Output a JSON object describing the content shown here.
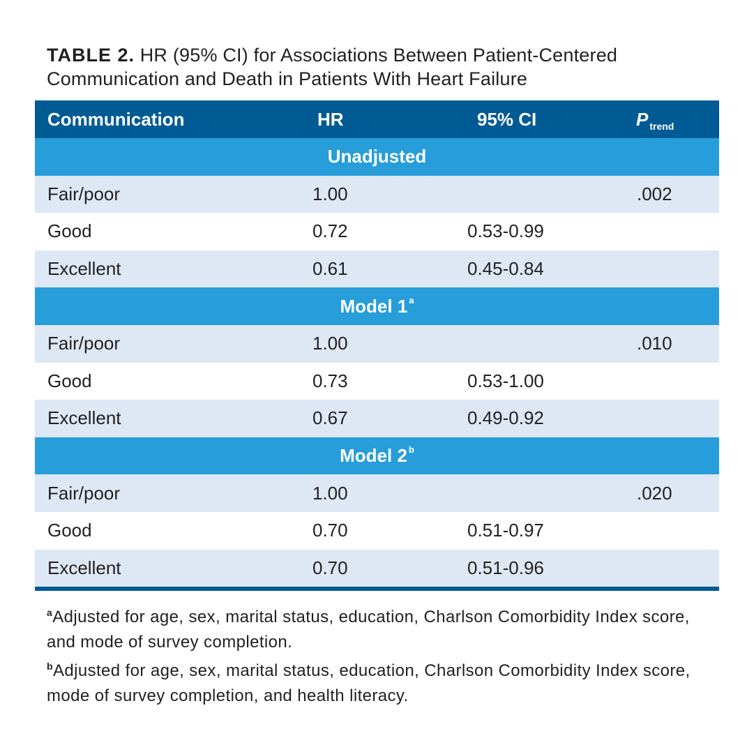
{
  "caption": {
    "label": "TABLE 2.",
    "text": "HR (95% CI) for Associations Between Patient-Centered Communication and Death in Patients With Heart Failure"
  },
  "table": {
    "headers": {
      "communication": "Communication",
      "hr": "HR",
      "ci": "95% CI",
      "ptrend_p": "P",
      "ptrend_sub": "trend"
    },
    "sections": [
      {
        "title": "Unadjusted",
        "sup": "",
        "rows": [
          {
            "communication": "Fair/poor",
            "hr": "1.00",
            "ci": "",
            "ptrend": ".002"
          },
          {
            "communication": "Good",
            "hr": "0.72",
            "ci": "0.53-0.99",
            "ptrend": ""
          },
          {
            "communication": "Excellent",
            "hr": "0.61",
            "ci": "0.45-0.84",
            "ptrend": ""
          }
        ]
      },
      {
        "title": "Model 1",
        "sup": "a",
        "rows": [
          {
            "communication": "Fair/poor",
            "hr": "1.00",
            "ci": "",
            "ptrend": ".010"
          },
          {
            "communication": "Good",
            "hr": "0.73",
            "ci": "0.53-1.00",
            "ptrend": ""
          },
          {
            "communication": "Excellent",
            "hr": "0.67",
            "ci": "0.49-0.92",
            "ptrend": ""
          }
        ]
      },
      {
        "title": "Model 2",
        "sup": "b",
        "rows": [
          {
            "communication": "Fair/poor",
            "hr": "1.00",
            "ci": "",
            "ptrend": ".020"
          },
          {
            "communication": "Good",
            "hr": "0.70",
            "ci": "0.51-0.97",
            "ptrend": ""
          },
          {
            "communication": "Excellent",
            "hr": "0.70",
            "ci": "0.51-0.96",
            "ptrend": ""
          }
        ]
      }
    ]
  },
  "footnotes": [
    {
      "mark": "a",
      "text": "Adjusted for age, sex, marital status, education, Charlson Comorbidity Index score, and mode of survey completion."
    },
    {
      "mark": "b",
      "text": "Adjusted for age, sex, marital status, education, Charlson Comorbidity Index score, mode of survey completion, and health literacy."
    }
  ],
  "colors": {
    "header_bg": "#005b94",
    "section_bg": "#279ed9",
    "row_light": "#dde8f4",
    "row_white": "#ffffff"
  }
}
